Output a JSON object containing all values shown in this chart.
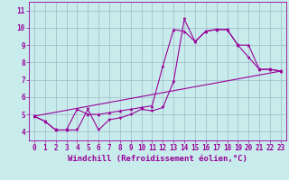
{
  "xlabel": "Windchill (Refroidissement éolien,°C)",
  "background_color": "#c8ecec",
  "line_color": "#990099",
  "xlim": [
    -0.5,
    23.5
  ],
  "ylim": [
    3.5,
    11.5
  ],
  "xticks": [
    0,
    1,
    2,
    3,
    4,
    5,
    6,
    7,
    8,
    9,
    10,
    11,
    12,
    13,
    14,
    15,
    16,
    17,
    18,
    19,
    20,
    21,
    22,
    23
  ],
  "yticks": [
    4,
    5,
    6,
    7,
    8,
    9,
    10,
    11
  ],
  "series1_x": [
    0,
    1,
    2,
    3,
    4,
    5,
    6,
    7,
    8,
    9,
    10,
    11,
    12,
    13,
    14,
    15,
    16,
    17,
    18,
    19,
    20,
    21,
    22,
    23
  ],
  "series1_y": [
    4.9,
    4.6,
    4.1,
    4.1,
    4.1,
    5.3,
    4.1,
    4.7,
    4.8,
    5.0,
    5.3,
    5.2,
    5.4,
    6.9,
    10.5,
    9.2,
    9.8,
    9.9,
    9.9,
    9.0,
    8.3,
    7.6,
    7.6,
    7.5
  ],
  "series2_x": [
    0,
    1,
    2,
    3,
    4,
    5,
    6,
    7,
    8,
    9,
    10,
    11,
    12,
    13,
    14,
    15,
    16,
    17,
    18,
    19,
    20,
    21,
    22,
    23
  ],
  "series2_y": [
    4.9,
    4.6,
    4.1,
    4.1,
    5.3,
    5.0,
    5.0,
    5.1,
    5.2,
    5.3,
    5.4,
    5.5,
    7.8,
    9.9,
    9.8,
    9.2,
    9.8,
    9.9,
    9.9,
    9.0,
    9.0,
    7.6,
    7.6,
    7.5
  ],
  "series3_x": [
    0,
    23
  ],
  "series3_y": [
    4.9,
    7.5
  ],
  "grid_color": "#a0b8c8",
  "tick_fontsize": 5.5,
  "label_fontsize": 6.5
}
